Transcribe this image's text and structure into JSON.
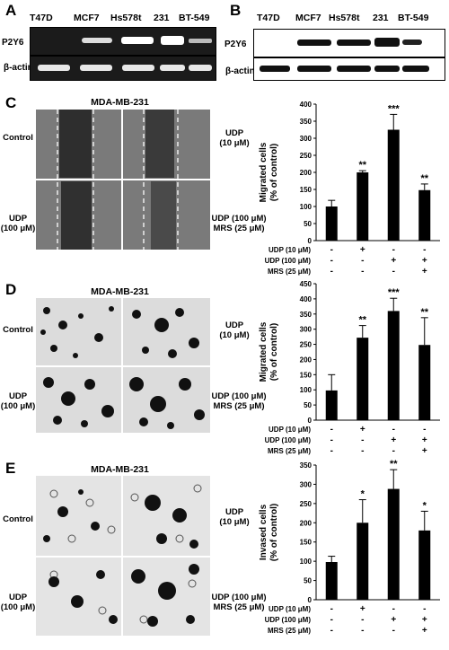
{
  "panels": {
    "A": {
      "letter": "A",
      "lanes": [
        "T47D",
        "MCF7",
        "Hs578t",
        "231",
        "BT-549"
      ],
      "rows": [
        "P2Y6",
        "β-actin"
      ]
    },
    "B": {
      "letter": "B",
      "lanes": [
        "T47D",
        "MCF7",
        "Hs578t",
        "231",
        "BT-549"
      ],
      "rows": [
        "P2Y6",
        "β-actin"
      ]
    },
    "C": {
      "letter": "C",
      "micro_title": "MDA-MB-231",
      "left_labels": [
        "Control",
        "UDP\n(100 μM)"
      ],
      "right_labels": [
        "UDP\n(10 μM)",
        "UDP (100 μM)\nMRS (25 μM)"
      ]
    },
    "D": {
      "letter": "D",
      "micro_title": "MDA-MB-231",
      "left_labels": [
        "Control",
        "UDP\n(100 μM)"
      ],
      "right_labels": [
        "UDP\n(10 μM)",
        "UDP (100 μM)\nMRS (25 μM)"
      ]
    },
    "E": {
      "letter": "E",
      "micro_title": "MDA-MB-231",
      "left_labels": [
        "Control",
        "UDP\n(100 μM)"
      ],
      "right_labels": [
        "UDP\n(10 μM)",
        "UDP (100 μM)\nMRS (25 μM)"
      ]
    }
  },
  "treatment_table": {
    "rows": [
      "UDP (10 μM)",
      "UDP (100 μM)",
      "MRS (25 μM)"
    ],
    "signs": [
      [
        "-",
        "+",
        "-",
        "-"
      ],
      [
        "-",
        "-",
        "+",
        "+"
      ],
      [
        "-",
        "-",
        "-",
        "+"
      ]
    ]
  },
  "chart_data": [
    {
      "type": "bar",
      "panel": "C",
      "categories": [
        "Control",
        "UDP (10 μM)",
        "UDP (100 μM)",
        "UDP (100 μM) + MRS (25 μM)"
      ],
      "values": [
        100,
        200,
        325,
        148
      ],
      "errors": [
        18,
        5,
        45,
        18
      ],
      "significance": [
        "",
        "**",
        "***",
        "**"
      ],
      "ylabel": "Migrated cells\n(% of control)",
      "ylim": [
        0,
        400
      ],
      "yticks": [
        0,
        50,
        100,
        150,
        200,
        250,
        300,
        350,
        400
      ],
      "bar_color": "#000000"
    },
    {
      "type": "bar",
      "panel": "D",
      "categories": [
        "Control",
        "UDP (10 μM)",
        "UDP (100 μM)",
        "UDP (100 μM) + MRS (25 μM)"
      ],
      "values": [
        98,
        272,
        360,
        248
      ],
      "errors": [
        52,
        40,
        42,
        90
      ],
      "significance": [
        "",
        "**",
        "***",
        "**"
      ],
      "ylabel": "Migrated cells\n(% of control)",
      "ylim": [
        0,
        450
      ],
      "yticks": [
        0,
        50,
        100,
        150,
        200,
        250,
        300,
        350,
        400,
        450
      ],
      "bar_color": "#000000"
    },
    {
      "type": "bar",
      "panel": "E",
      "categories": [
        "Control",
        "UDP (10 μM)",
        "UDP (100 μM)",
        "UDP (100 μM) + MRS (25 μM)"
      ],
      "values": [
        98,
        200,
        288,
        180
      ],
      "errors": [
        15,
        60,
        50,
        50
      ],
      "significance": [
        "",
        "*",
        "**",
        "*"
      ],
      "ylabel": "Invased cells\n(% of control)",
      "ylim": [
        0,
        350
      ],
      "yticks": [
        0,
        50,
        100,
        150,
        200,
        250,
        300,
        350
      ],
      "bar_color": "#000000"
    }
  ]
}
